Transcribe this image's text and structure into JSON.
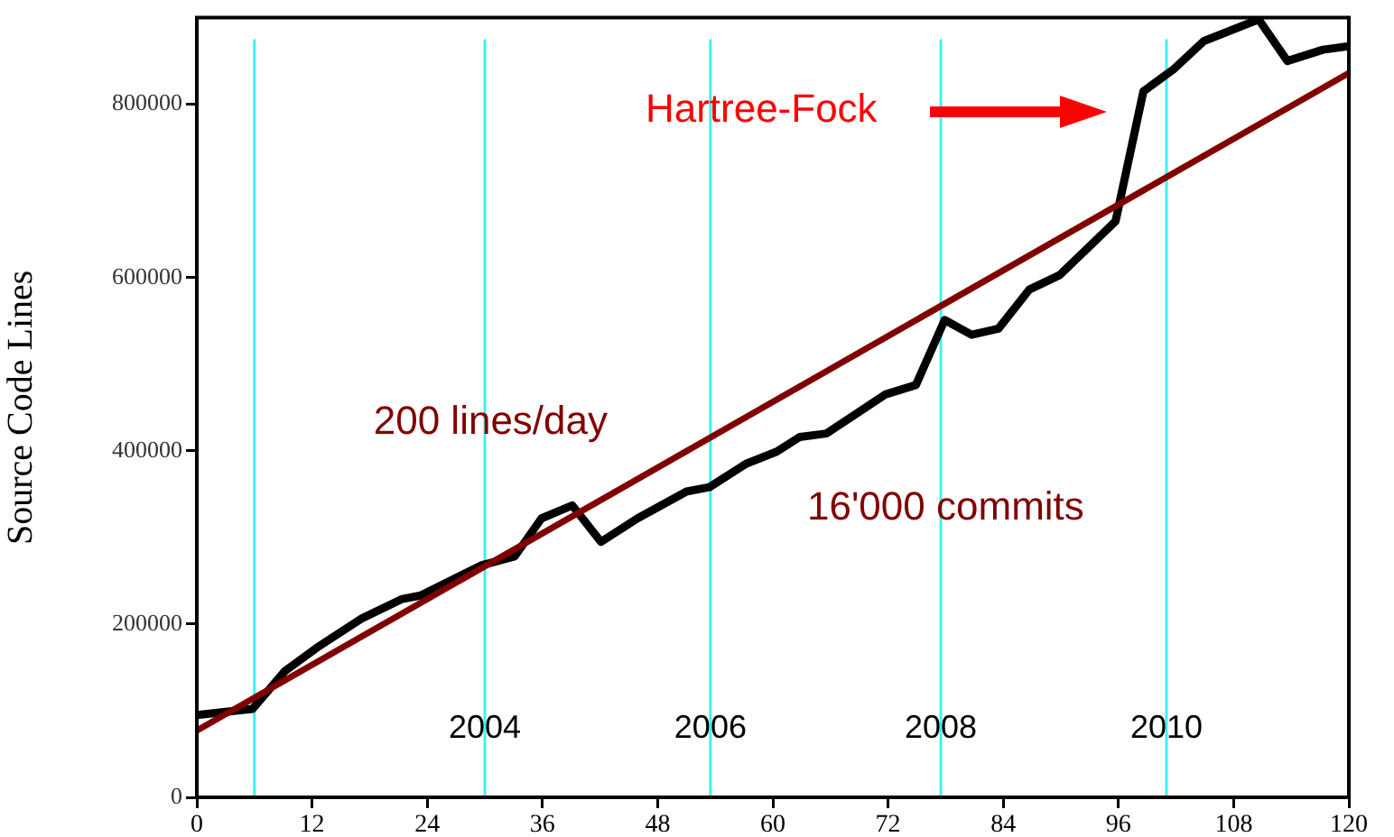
{
  "chart_data": {
    "type": "line",
    "ylabel": "Source Code Lines",
    "xlim": [
      0,
      120
    ],
    "xticks": [
      0,
      12,
      24,
      36,
      48,
      60,
      72,
      84,
      96,
      108,
      120
    ],
    "ylim": [
      0,
      900000
    ],
    "yticks": [
      0,
      200000,
      400000,
      600000,
      800000
    ],
    "grid": false,
    "legend": false,
    "marker": "none",
    "line_style": "solid",
    "series": [
      {
        "color": "#000000",
        "x": [
          0,
          5.8,
          9.2,
          12.8,
          17.1,
          21.4,
          23.3,
          29.7,
          33.1,
          35.9,
          39.1,
          42.1,
          45.9,
          51,
          53.4,
          57.2,
          60.4,
          62.8,
          65.6,
          71.7,
          74.9,
          77.9,
          80.7,
          83.5,
          86.7,
          89.9,
          95.7,
          98.6,
          101.7,
          104.9,
          110.6,
          113.6,
          117.3,
          120
        ],
        "values": [
          95000,
          102000,
          146000,
          175000,
          206000,
          229000,
          233000,
          268000,
          278000,
          322000,
          337000,
          295000,
          322000,
          353000,
          358000,
          385000,
          399000,
          416000,
          420000,
          465000,
          476000,
          551000,
          534000,
          541000,
          586000,
          603000,
          665000,
          815000,
          840000,
          873000,
          898000,
          850000,
          863000,
          867000
        ]
      },
      {
        "type": "line",
        "color": "#800000",
        "x": [
          0,
          120
        ],
        "values": [
          77000,
          836000
        ]
      }
    ],
    "ref_lines": [
      {
        "axis": "x",
        "value": 6,
        "color": "#40f0f0"
      },
      {
        "axis": "x",
        "value": 30,
        "color": "#40f0f0"
      },
      {
        "axis": "x",
        "value": 53.5,
        "color": "#40f0f0"
      },
      {
        "axis": "x",
        "value": 77.5,
        "color": "#40f0f0"
      },
      {
        "axis": "x",
        "value": 101,
        "color": "#40f0f0"
      }
    ],
    "annotations": [
      "Hartree-Fock",
      "200 lines/day",
      "16'000 commits",
      {
        "text": "2004",
        "x": 30
      },
      {
        "text": "2006",
        "x": 53.5
      },
      {
        "text": "2008",
        "x": 77.5
      },
      {
        "text": "2010",
        "x": 101
      }
    ]
  }
}
